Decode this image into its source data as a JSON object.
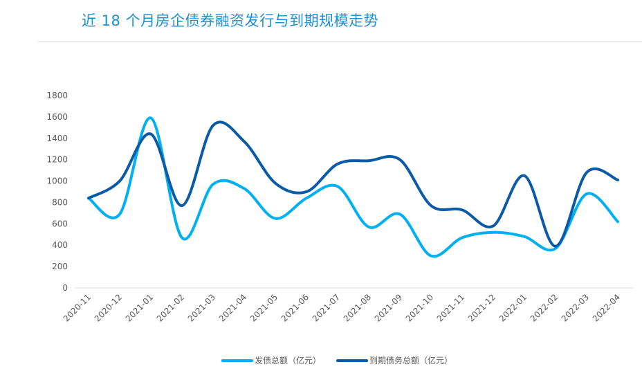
{
  "title": "近 18 个月房企债券融资发行与到期规模走势",
  "chart_data": {
    "type": "line",
    "title": "近 18 个月房企债券融资发行与到期规模走势",
    "xlabel": "",
    "ylabel": "",
    "ylim": [
      0,
      1800
    ],
    "yticks": [
      0,
      200,
      400,
      600,
      800,
      1000,
      1200,
      1400,
      1600,
      1800
    ],
    "grid": false,
    "legend": "bottom",
    "categories": [
      "2020-11",
      "2020-12",
      "2021-01",
      "2021-02",
      "2021-03",
      "2021-04",
      "2021-05",
      "2021-06",
      "2021-07",
      "2021-08",
      "2021-09",
      "2021-10",
      "2021-11",
      "2021-12",
      "2022-01",
      "2022-02",
      "2022-03",
      "2022-04"
    ],
    "series": [
      {
        "name": "发债总额（亿元）",
        "color": "#00b0f0",
        "values": [
          840,
          690,
          1590,
          470,
          970,
          930,
          650,
          840,
          950,
          570,
          690,
          300,
          470,
          520,
          480,
          370,
          880,
          620
        ]
      },
      {
        "name": "到期债务总额（亿元）",
        "color": "#0b5aa6",
        "values": [
          840,
          1000,
          1440,
          770,
          1520,
          1370,
          980,
          900,
          1160,
          1190,
          1200,
          770,
          730,
          580,
          1050,
          390,
          1080,
          1010
        ]
      }
    ]
  }
}
